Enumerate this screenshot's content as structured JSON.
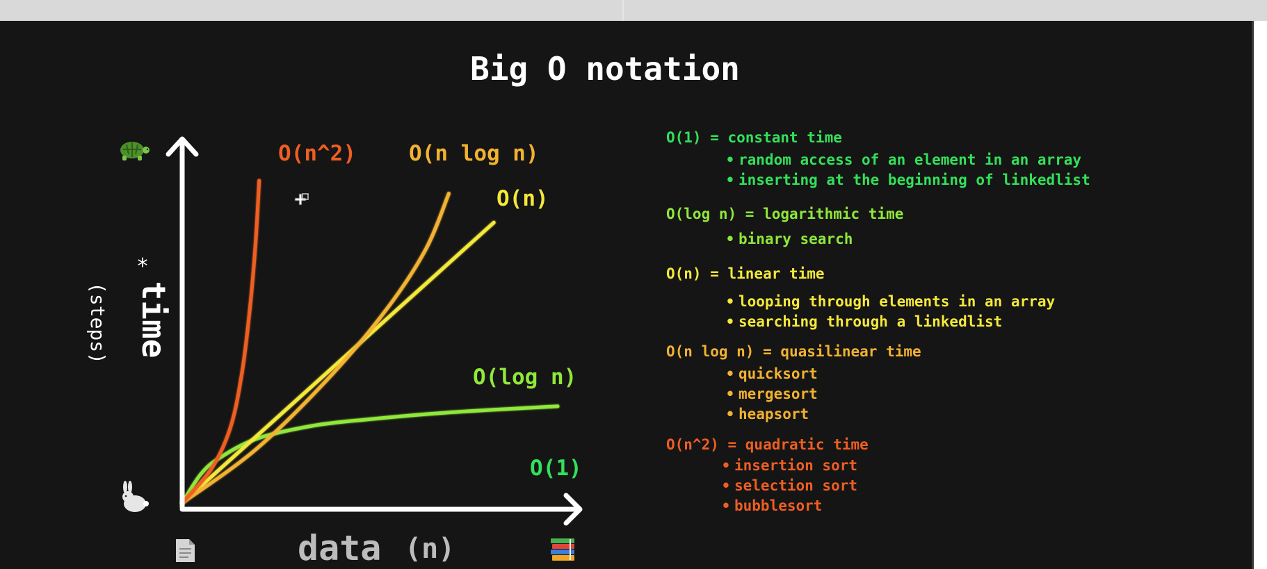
{
  "title": "Big O notation",
  "colors": {
    "o1": "#33e05a",
    "ologn": "#8fe83a",
    "on": "#f4e83a",
    "onlogn": "#f2b230",
    "on2": "#ee5e22",
    "axis": "#ffffff"
  },
  "icons": {
    "slow": "turtle-icon",
    "fast": "rabbit-icon",
    "few_data": "document-icon",
    "much_data": "books-icon"
  },
  "chart_data": {
    "type": "line",
    "xlabel": "data",
    "xlabel_suffix": "(n)",
    "ylabel": "time",
    "ylabel_mark": "*",
    "ylabel_suffix": "(steps)",
    "series": [
      {
        "name": "O(1)",
        "key": "o1",
        "x": [
          0,
          100
        ],
        "y": [
          4,
          4
        ]
      },
      {
        "name": "O(log n)",
        "key": "ologn",
        "x": [
          0,
          5,
          10,
          20,
          35,
          50,
          70,
          100
        ],
        "y": [
          0,
          9,
          14,
          20,
          24,
          26,
          28,
          30
        ]
      },
      {
        "name": "O(n)",
        "key": "on",
        "x": [
          0,
          83
        ],
        "y": [
          0,
          87
        ]
      },
      {
        "name": "O(n log n)",
        "key": "onlogn",
        "x": [
          0,
          20,
          40,
          55,
          65,
          71
        ],
        "y": [
          0,
          17,
          40,
          61,
          79,
          96
        ]
      },
      {
        "name": "O(n^2)",
        "key": "on2",
        "x": [
          0,
          8,
          13,
          16,
          18,
          19.5,
          20.5
        ],
        "y": [
          0,
          11,
          24,
          41,
          60,
          80,
          100
        ]
      }
    ]
  },
  "legend": [
    {
      "head": "O(1) = constant time",
      "key": "o1",
      "items": [
        "random access of an element in an array",
        "inserting at the beginning of linkedlist"
      ]
    },
    {
      "head": "O(log n) = logarithmic time",
      "key": "ologn",
      "items": [
        "binary search"
      ]
    },
    {
      "head": "O(n) = linear time",
      "key": "on",
      "items": [
        "looping through elements in an array",
        "searching through a linkedlist"
      ]
    },
    {
      "head": "O(n log n) = quasilinear time",
      "key": "onlogn",
      "items": [
        "quicksort",
        "mergesort",
        "heapsort"
      ]
    },
    {
      "head": "O(n^2) = quadratic time",
      "key": "on2",
      "items": [
        "insertion sort",
        "selection sort",
        "bubblesort"
      ]
    }
  ]
}
